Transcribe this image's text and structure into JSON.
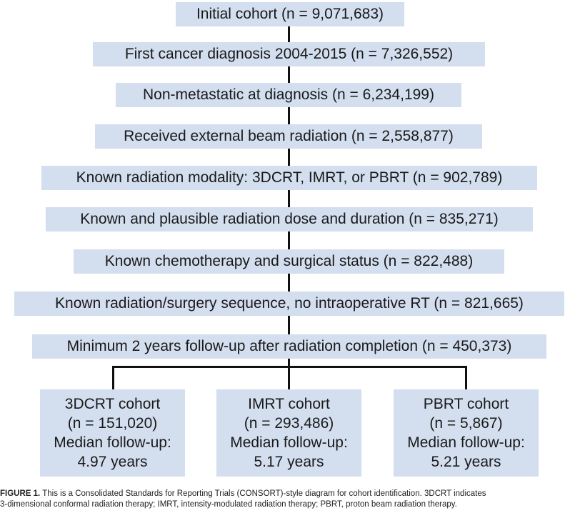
{
  "steps": [
    "Initial cohort (n = 9,071,683)",
    "First cancer diagnosis 2004-2015 (n = 7,326,552)",
    "Non-metastatic at diagnosis (n = 6,234,199)",
    "Received external beam radiation (n = 2,558,877)",
    "Known radiation modality: 3DCRT, IMRT, or PBRT (n = 902,789)",
    "Known and plausible radiation dose and duration (n = 835,271)",
    "Known chemotherapy and surgical status (n = 822,488)",
    "Known radiation/surgery sequence, no intraoperative RT (n = 821,665)",
    "Minimum 2 years follow-up after radiation completion (n = 450,373)"
  ],
  "cohorts": [
    {
      "name": "3DCRT cohort",
      "n": "(n = 151,020)",
      "followup_label": "Median follow-up:",
      "followup_value": "4.97 years"
    },
    {
      "name": "IMRT cohort",
      "n": "(n = 293,486)",
      "followup_label": "Median follow-up:",
      "followup_value": "5.17 years"
    },
    {
      "name": "PBRT cohort",
      "n": "(n = 5,867)",
      "followup_label": "Median follow-up:",
      "followup_value": "5.21 years"
    }
  ],
  "caption": {
    "label": "FIGURE 1.",
    "line1": "This is a Consolidated Standards for Reporting Trials (CONSORT)-style diagram for cohort identification. 3DCRT indicates",
    "line2": "3-dimensional conformal radiation therapy; IMRT, intensity-modulated radiation therapy; PBRT, proton beam radiation therapy."
  },
  "colors": {
    "box_fill": "#d3deef",
    "line": "#111111"
  }
}
